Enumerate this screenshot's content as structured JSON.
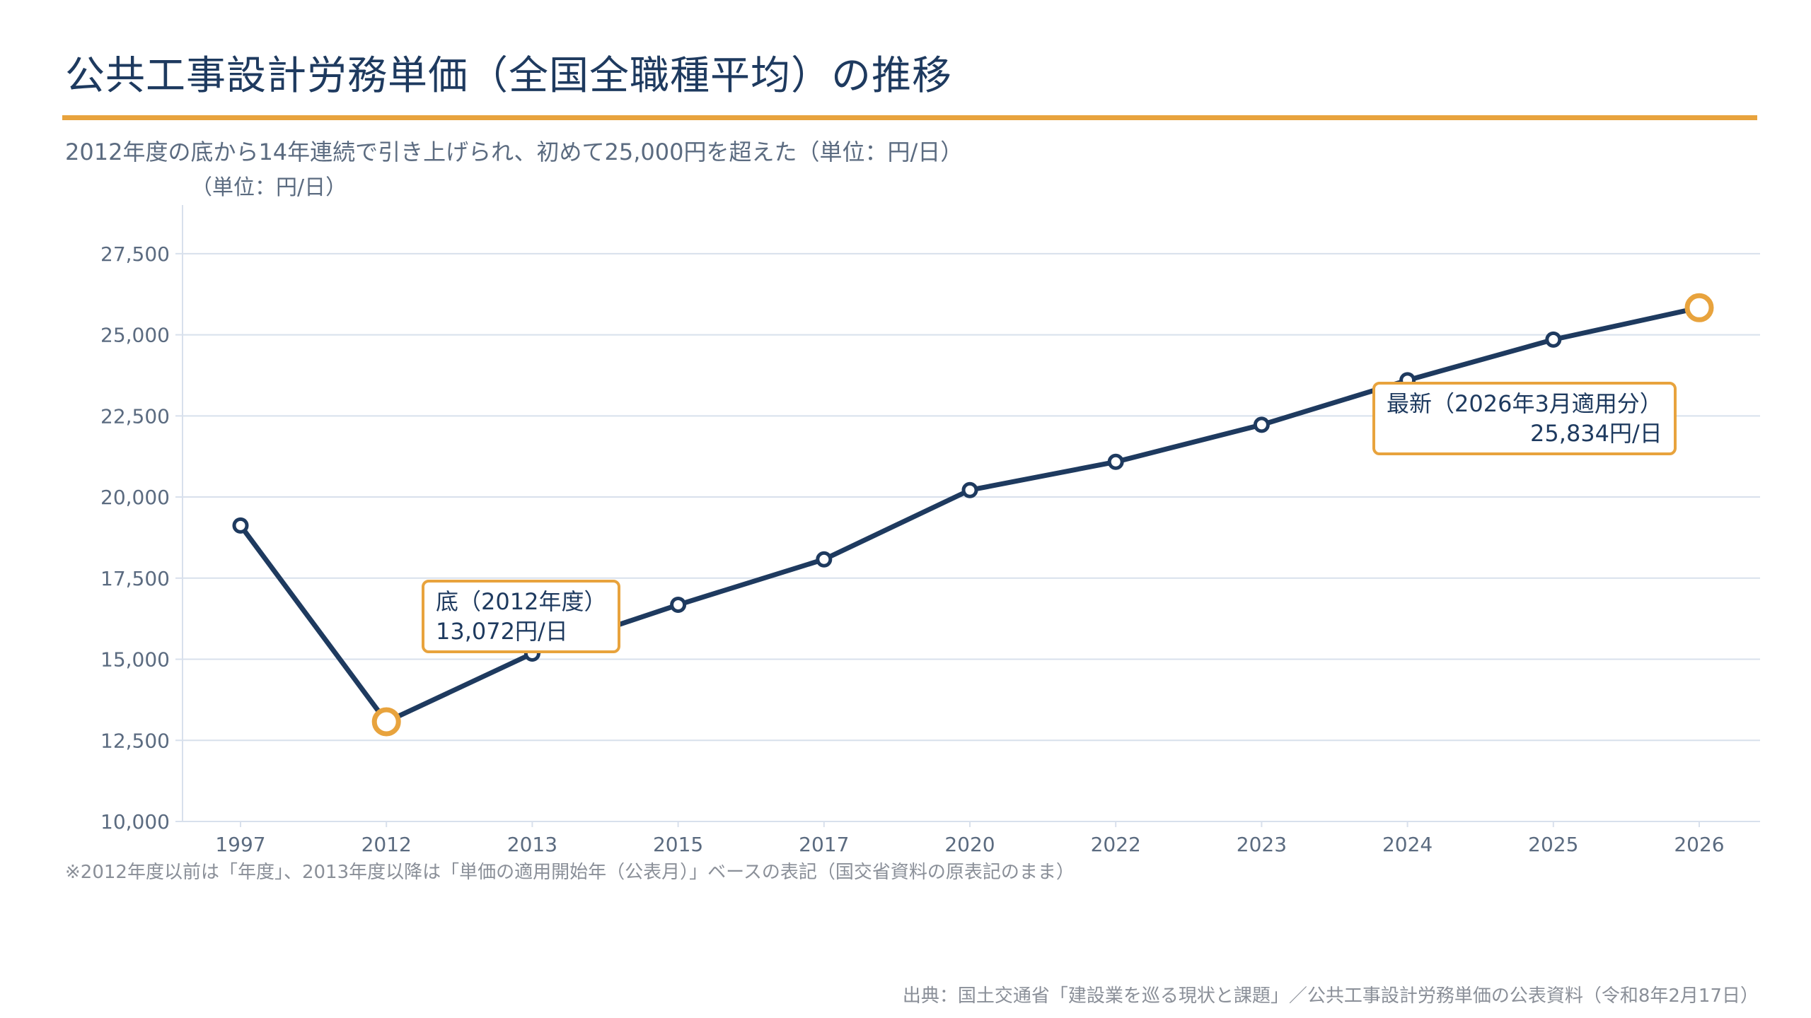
{
  "title": "公共工事設計労務単価（全国全職種平均）の推移",
  "subtitle": "2012年度の底から14年連続で引き上げられ、初めて25,000円を超えた（単位：円/日）",
  "unit_label": "（単位：円/日）",
  "footnote": "※2012年度以前は「年度」、2013年度以降は「単価の適用開始年（公表月）」ベースの表記（国交省資料の原表記のまま）",
  "source": "出典：国土交通省「建設業を巡る現状と課題」／公共工事設計労務単価の公表資料（令和8年2月17日）",
  "colors": {
    "line": "#1e3a5f",
    "accent": "#e8a33d",
    "grid": "#d8e0ec",
    "axis_text": "#5b6b80"
  },
  "callouts": {
    "low_title": "底（2012年度）",
    "low_value": "13,072円/日",
    "latest_title": "最新（2026年3月適用分）",
    "latest_value": "25,834円/日"
  },
  "chart_data": {
    "type": "line",
    "categories": [
      "1997",
      "2012",
      "2013",
      "2015",
      "2017",
      "2020",
      "2022",
      "2023",
      "2024",
      "2025",
      "2026"
    ],
    "values": [
      19121,
      13072,
      15175,
      16678,
      18078,
      20214,
      21084,
      22227,
      23600,
      24852,
      25834
    ],
    "highlight_indices": [
      1,
      10
    ],
    "ylim": [
      10000,
      29000
    ],
    "yticks": [
      10000,
      12500,
      15000,
      17500,
      20000,
      22500,
      25000,
      27500
    ],
    "ytick_labels": [
      "10,000",
      "12,500",
      "15,000",
      "17,500",
      "20,000",
      "22,500",
      "25,000",
      "27,500"
    ],
    "grid": true,
    "legend": "none",
    "xlabel": "",
    "ylabel": "（単位：円/日）"
  }
}
